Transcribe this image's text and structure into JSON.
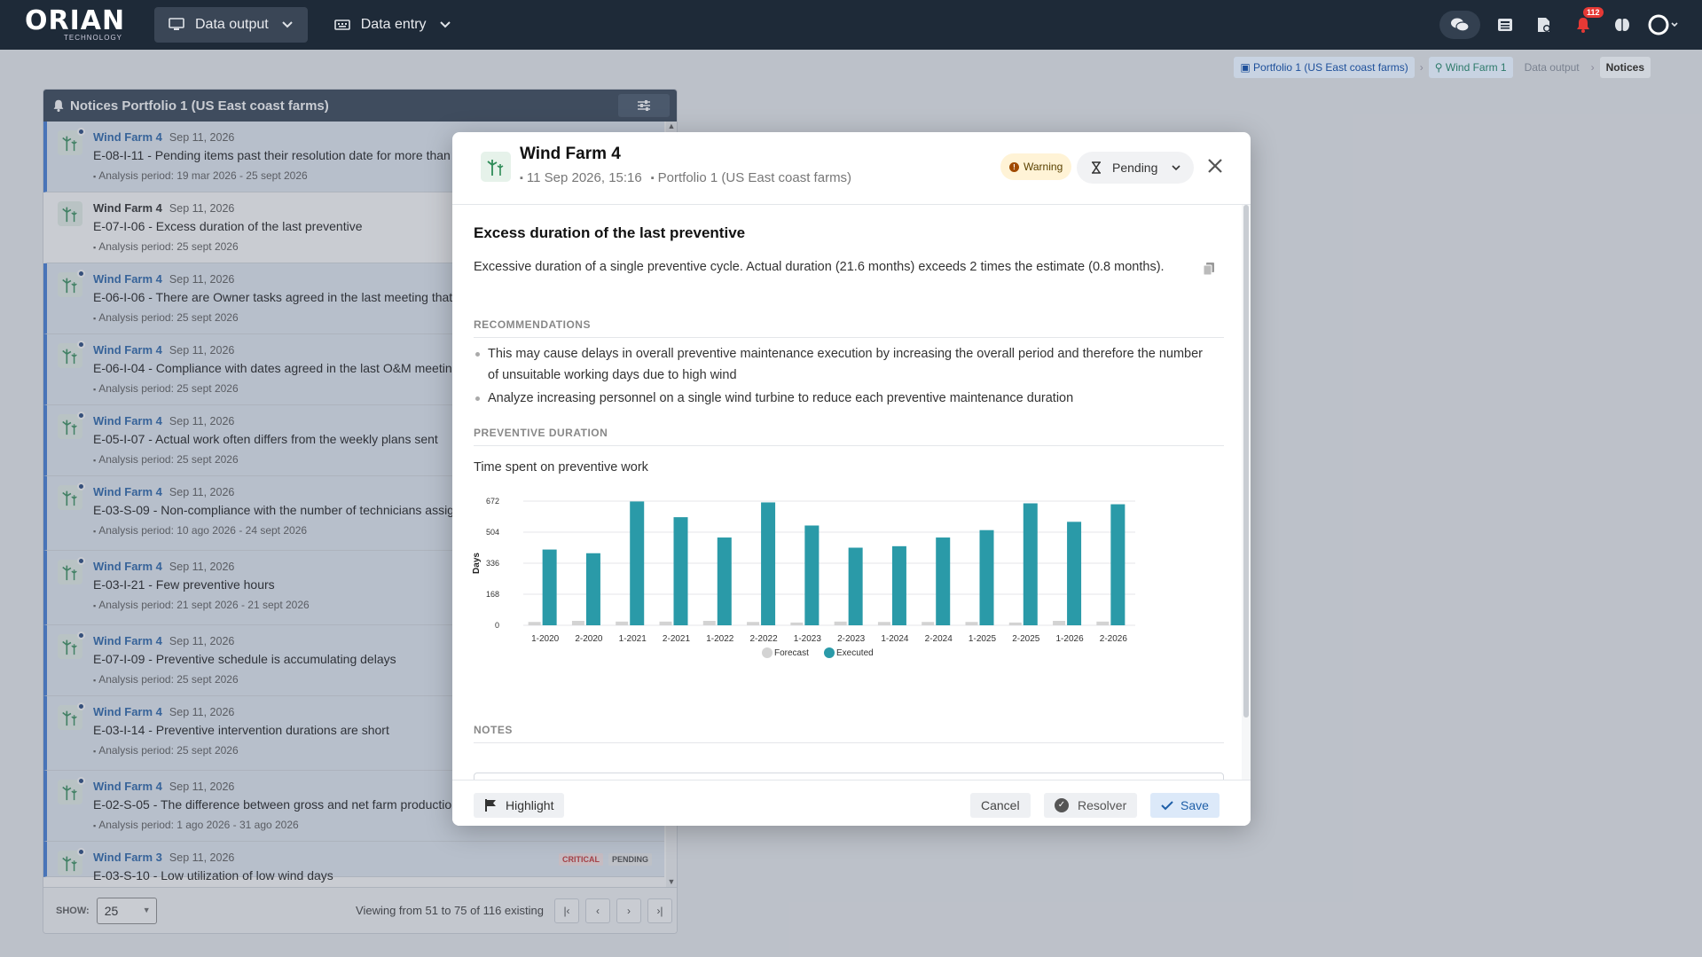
{
  "app": {
    "logo": "ORIAN",
    "logo_sub": "TECHNOLOGY"
  },
  "nav": [
    {
      "label": "Data output",
      "icon": "monitor-icon",
      "active": true
    },
    {
      "label": "Data entry",
      "icon": "keyboard-icon",
      "active": false
    }
  ],
  "top_icons": {
    "notifications_count": "112"
  },
  "breadcrumb": [
    "Portfolio 1 (US East coast farms)",
    "Wind Farm 1",
    "Data output",
    "Notices"
  ],
  "panel": {
    "title": "Notices Portfolio 1 (US East coast farms)",
    "items": [
      {
        "farm": "Wind Farm 4",
        "date": "Sep 11, 2026",
        "title": "E-08-I-11 - Pending items past their resolution date for more than",
        "period": "Analysis period: 19 mar 2026 - 25 sept 2026",
        "unread": true
      },
      {
        "farm": "Wind Farm 4",
        "date": "Sep 11, 2026",
        "title": "E-07-I-06 - Excess duration of the last preventive",
        "period": "Analysis period: 25 sept 2026",
        "unread": false
      },
      {
        "farm": "Wind Farm 4",
        "date": "Sep 11, 2026",
        "title": "E-06-I-06 - There are Owner tasks agreed in the last meeting that",
        "period": "Analysis period: 25 sept 2026",
        "unread": true
      },
      {
        "farm": "Wind Farm 4",
        "date": "Sep 11, 2026",
        "title": "E-06-I-04 - Compliance with dates agreed in the last O&M meeting",
        "period": "Analysis period: 25 sept 2026",
        "unread": true
      },
      {
        "farm": "Wind Farm 4",
        "date": "Sep 11, 2026",
        "title": "E-05-I-07 - Actual work often differs from the weekly plans sent",
        "period": "Analysis period: 25 sept 2026",
        "unread": true
      },
      {
        "farm": "Wind Farm 4",
        "date": "Sep 11, 2026",
        "title": "E-03-S-09 - Non-compliance with the number of technicians assigned",
        "period": "Analysis period: 10 ago 2026 - 24 sept 2026",
        "unread": true
      },
      {
        "farm": "Wind Farm 4",
        "date": "Sep 11, 2026",
        "title": "E-03-I-21 - Few preventive hours",
        "period": "Analysis period: 21 sept 2026 - 21 sept 2026",
        "unread": true
      },
      {
        "farm": "Wind Farm 4",
        "date": "Sep 11, 2026",
        "title": "E-07-I-09 - Preventive schedule is accumulating delays",
        "period": "Analysis period: 25 sept 2026",
        "unread": true
      },
      {
        "farm": "Wind Farm 4",
        "date": "Sep 11, 2026",
        "title": "E-03-I-14 - Preventive intervention durations are short",
        "period": "Analysis period: 25 sept 2026",
        "unread": true
      },
      {
        "farm": "Wind Farm 4",
        "date": "Sep 11, 2026",
        "title": "E-02-S-05 - The difference between gross and net farm production",
        "period": "Analysis period: 1 ago 2026 - 31 ago 2026",
        "unread": true
      },
      {
        "farm": "Wind Farm 3",
        "date": "Sep 11, 2026",
        "title": "E-03-S-10 - Low utilization of low wind days",
        "period": "",
        "unread": true,
        "tags": [
          "CRITICAL",
          "PENDING"
        ]
      }
    ],
    "footer": {
      "show_label": "SHOW:",
      "page_size": "25",
      "viewing": "Viewing from 51 to 75 of 116 existing"
    }
  },
  "modal": {
    "farm": "Wind Farm 4",
    "timestamp": "11 Sep 2026, 15:16",
    "portfolio": "Portfolio 1 (US East coast farms)",
    "severity": "Warning",
    "status": "Pending",
    "heading": "Excess duration of the last preventive",
    "description": "Excessive duration of a single preventive cycle. Actual duration (21.6 months) exceeds 2 times the estimate (0.8 months).",
    "recommendations_label": "RECOMMENDATIONS",
    "recommendations": [
      "This may cause delays in overall preventive maintenance execution by increasing the overall period and therefore the number of unsuitable working days due to high wind",
      "Analyze increasing personnel on a single wind turbine to reduce each preventive maintenance duration"
    ],
    "duration_label": "PREVENTIVE DURATION",
    "chart_title": "Time spent on preventive work",
    "notes_label": "NOTES",
    "buttons": {
      "highlight": "Highlight",
      "cancel": "Cancel",
      "resolver": "Resolver",
      "save": "Save"
    }
  },
  "chart_data": {
    "type": "bar",
    "title": "Time spent on preventive work",
    "ylabel": "Days",
    "xlabel": "",
    "ylim": [
      0,
      672
    ],
    "yticks": [
      0,
      168,
      336,
      504,
      672
    ],
    "categories": [
      "1-2020",
      "2-2020",
      "1-2021",
      "2-2021",
      "1-2022",
      "2-2022",
      "1-2023",
      "2-2023",
      "1-2024",
      "2-2024",
      "1-2025",
      "2-2025",
      "1-2026",
      "2-2026"
    ],
    "series": [
      {
        "name": "Forecast",
        "color": "#d3d3d3",
        "values": [
          18,
          24,
          20,
          20,
          24,
          18,
          15,
          20,
          18,
          18,
          18,
          15,
          24,
          20
        ]
      },
      {
        "name": "Executed",
        "color": "#2a9aa8",
        "values": [
          410,
          390,
          670,
          585,
          475,
          665,
          540,
          420,
          428,
          475,
          515,
          660,
          560,
          655
        ]
      }
    ]
  }
}
